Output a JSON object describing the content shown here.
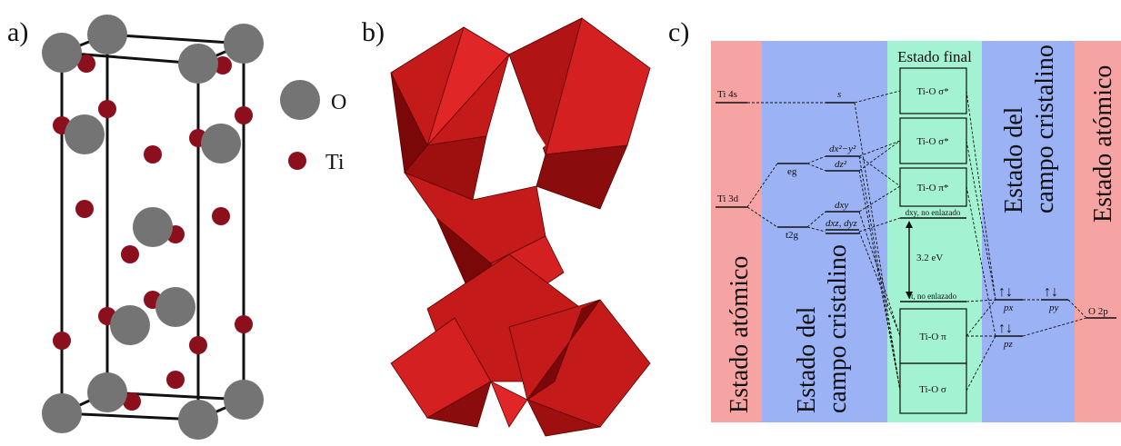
{
  "panels": {
    "a": {
      "label": "a)",
      "legend": [
        "O",
        "Ti"
      ]
    },
    "b": {
      "label": "b)"
    },
    "c": {
      "label": "c)",
      "columns": [
        [
          "Estado atómico"
        ],
        [
          "Estado del",
          "campo cristalino"
        ],
        [
          "Estado final"
        ],
        [
          "Estado del",
          "campo cristalino"
        ],
        [
          "Estado atómico"
        ]
      ],
      "levels": {
        "ti4s": "Ti 4s",
        "ti3d": "Ti 3d",
        "s": "s",
        "eg": "eg",
        "t2g": "t2g",
        "dx2y2": "dx²−y²",
        "dz2": "dz²",
        "dxy": "dxy",
        "dxzdyz": "dxz, dyz",
        "dxy_nonbonding": "dxy, no enlazado",
        "pi_nonbonding": "π, no enlazado",
        "px": "px",
        "py": "py",
        "pz": "pz",
        "o2p": "O 2p"
      },
      "boxes": [
        "Ti-O σ*",
        "Ti-O σ*",
        "Ti-O π*",
        "Ti-O π",
        "Ti-O σ"
      ],
      "gap": "3.2 eV",
      "electrons": "↑↓"
    }
  }
}
